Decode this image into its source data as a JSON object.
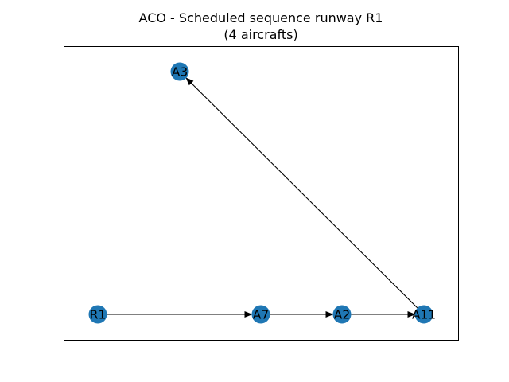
{
  "figure": {
    "title_line1": "ACO - Scheduled sequence runway R1",
    "title_line2": "(4 aircrafts)"
  },
  "graph": {
    "node_color": "#1f77b4",
    "edge_color": "#000000",
    "nodes": [
      {
        "id": "R1",
        "label": "R1"
      },
      {
        "id": "A7",
        "label": "A7"
      },
      {
        "id": "A2",
        "label": "A2"
      },
      {
        "id": "A11",
        "label": "A11"
      },
      {
        "id": "A3",
        "label": "A3"
      }
    ],
    "edges": [
      {
        "from": "R1",
        "to": "A7"
      },
      {
        "from": "A7",
        "to": "A2"
      },
      {
        "from": "A2",
        "to": "A11"
      },
      {
        "from": "A11",
        "to": "A3"
      }
    ]
  }
}
